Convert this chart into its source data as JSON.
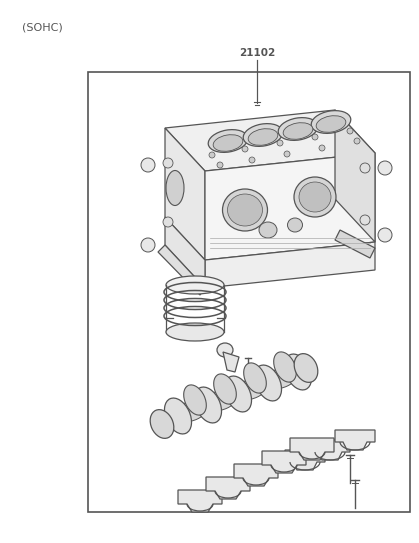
{
  "title_label": "(SOHC)",
  "part_number": "21102",
  "bg_color": "#ffffff",
  "line_color": "#555555",
  "text_color": "#555555",
  "fig_width": 4.19,
  "fig_height": 5.43,
  "dpi": 100
}
